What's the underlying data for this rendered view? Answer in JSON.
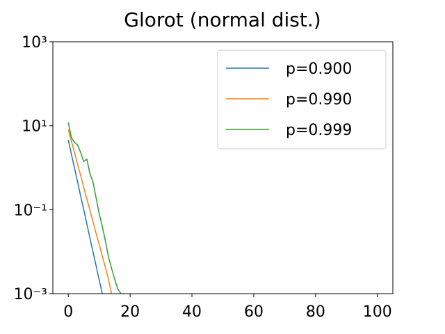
{
  "chart_data": {
    "type": "line",
    "title": "Glorot (normal dist.)",
    "x": [
      0,
      1,
      2,
      3,
      4,
      5,
      6,
      7,
      8,
      9,
      10,
      11,
      12,
      13,
      14,
      15,
      16,
      17
    ],
    "series": [
      {
        "name": "p=0.900",
        "color": "#1f77b4",
        "values": [
          4.6,
          2.1,
          0.98,
          0.46,
          0.21,
          0.1,
          0.046,
          0.021,
          0.0098,
          0.0046,
          0.0021,
          0.001,
          null,
          null,
          null,
          null,
          null,
          null
        ]
      },
      {
        "name": "p=0.990",
        "color": "#ff7f0e",
        "values": [
          8.1,
          4.3,
          2.3,
          1.2,
          0.65,
          0.34,
          0.18,
          0.097,
          0.052,
          0.027,
          0.015,
          0.0078,
          0.0042,
          0.0022,
          0.001,
          null,
          null,
          null
        ]
      },
      {
        "name": "p=0.999",
        "color": "#2ca02c",
        "values": [
          12,
          5.2,
          4.0,
          3.5,
          2.3,
          1.4,
          1.6,
          0.72,
          0.45,
          0.19,
          0.08,
          0.04,
          0.018,
          0.0075,
          0.004,
          0.0022,
          0.0013,
          0.001
        ]
      }
    ],
    "xlim": [
      -5,
      105
    ],
    "xticks": [
      0,
      20,
      40,
      60,
      80,
      100
    ],
    "ylim": [
      0.001,
      1000
    ],
    "log_y": true,
    "yticks": [
      {
        "value": 0.001,
        "label": "10⁻³"
      },
      {
        "value": 0.1,
        "label": "10⁻¹"
      },
      {
        "value": 10,
        "label": "10¹"
      },
      {
        "value": 1000,
        "label": "10³"
      }
    ],
    "legend": "upper right"
  }
}
